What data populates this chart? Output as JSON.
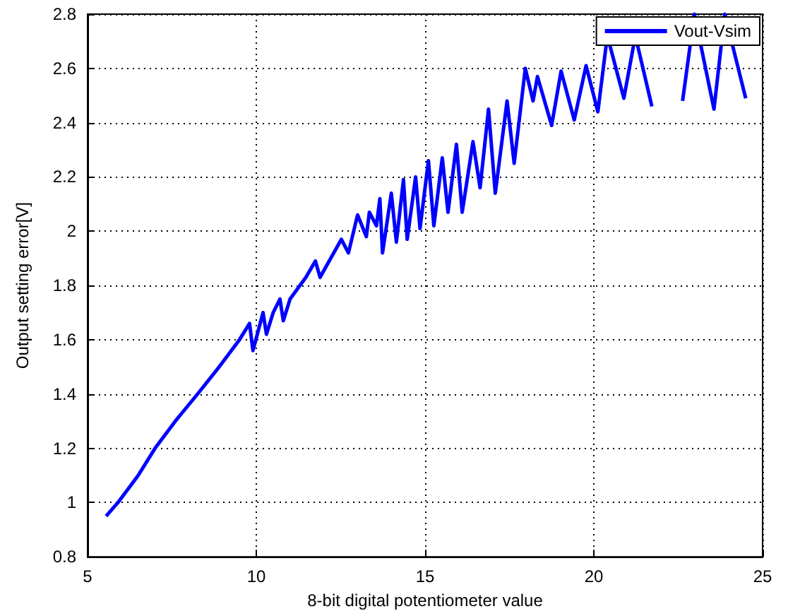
{
  "chart_data": {
    "type": "line",
    "xlabel": "8-bit digital potentiometer value",
    "ylabel": "Output setting error[V]",
    "series": [
      {
        "name": "Vout-Vsim",
        "color": "#0000ff",
        "x": [
          5.55,
          5.9,
          6.5,
          7,
          7.6,
          8.26,
          8.9,
          9.5,
          9.8,
          9.9,
          10.2,
          10.3,
          10.5,
          10.7,
          10.8,
          11,
          11.47,
          11.75,
          11.89,
          12.52,
          12.73,
          13.0,
          13.26,
          13.35,
          13.56,
          13.66,
          13.74,
          14.0,
          14.15,
          14.36,
          14.47,
          14.72,
          14.85,
          15.1,
          15.26,
          15.51,
          15.68,
          15.93,
          16.1,
          16.42,
          16.63,
          16.88,
          17.08,
          17.43,
          17.64,
          17.97,
          18.2,
          18.33,
          18.75,
          19.03,
          19.42,
          19.77,
          20.12,
          20.4,
          20.89,
          21.23,
          21.72,
          22.14,
          22.63,
          22.98,
          23.56,
          23.88,
          24.5
        ],
        "values": [
          0.95,
          1.0,
          1.1,
          1.2,
          1.3,
          1.4,
          1.5,
          1.6,
          1.66,
          1.56,
          1.7,
          1.62,
          1.7,
          1.75,
          1.67,
          1.75,
          1.83,
          1.89,
          1.83,
          1.97,
          1.92,
          2.06,
          1.98,
          2.07,
          2.02,
          2.12,
          1.92,
          2.14,
          1.96,
          2.19,
          1.97,
          2.2,
          2.01,
          2.26,
          2.02,
          2.27,
          2.07,
          2.32,
          2.07,
          2.33,
          2.16,
          2.45,
          2.14,
          2.48,
          2.25,
          2.6,
          2.48,
          2.57,
          2.39,
          2.59,
          2.41,
          2.61,
          2.44,
          2.72,
          2.49,
          2.72,
          2.46,
          null,
          2.48,
          2.8,
          2.45,
          2.8,
          2.49
        ]
      }
    ],
    "xlim": [
      5,
      25
    ],
    "xticks": [
      5,
      10,
      15,
      20,
      25
    ],
    "ylim": [
      0.8,
      2.8
    ],
    "yticks": [
      0.8,
      1,
      1.2,
      1.4,
      1.6,
      1.8,
      2,
      2.2,
      2.4,
      2.6,
      2.8
    ],
    "grid": true,
    "legend": "top right",
    "line_style": "solid",
    "marker": "none"
  }
}
